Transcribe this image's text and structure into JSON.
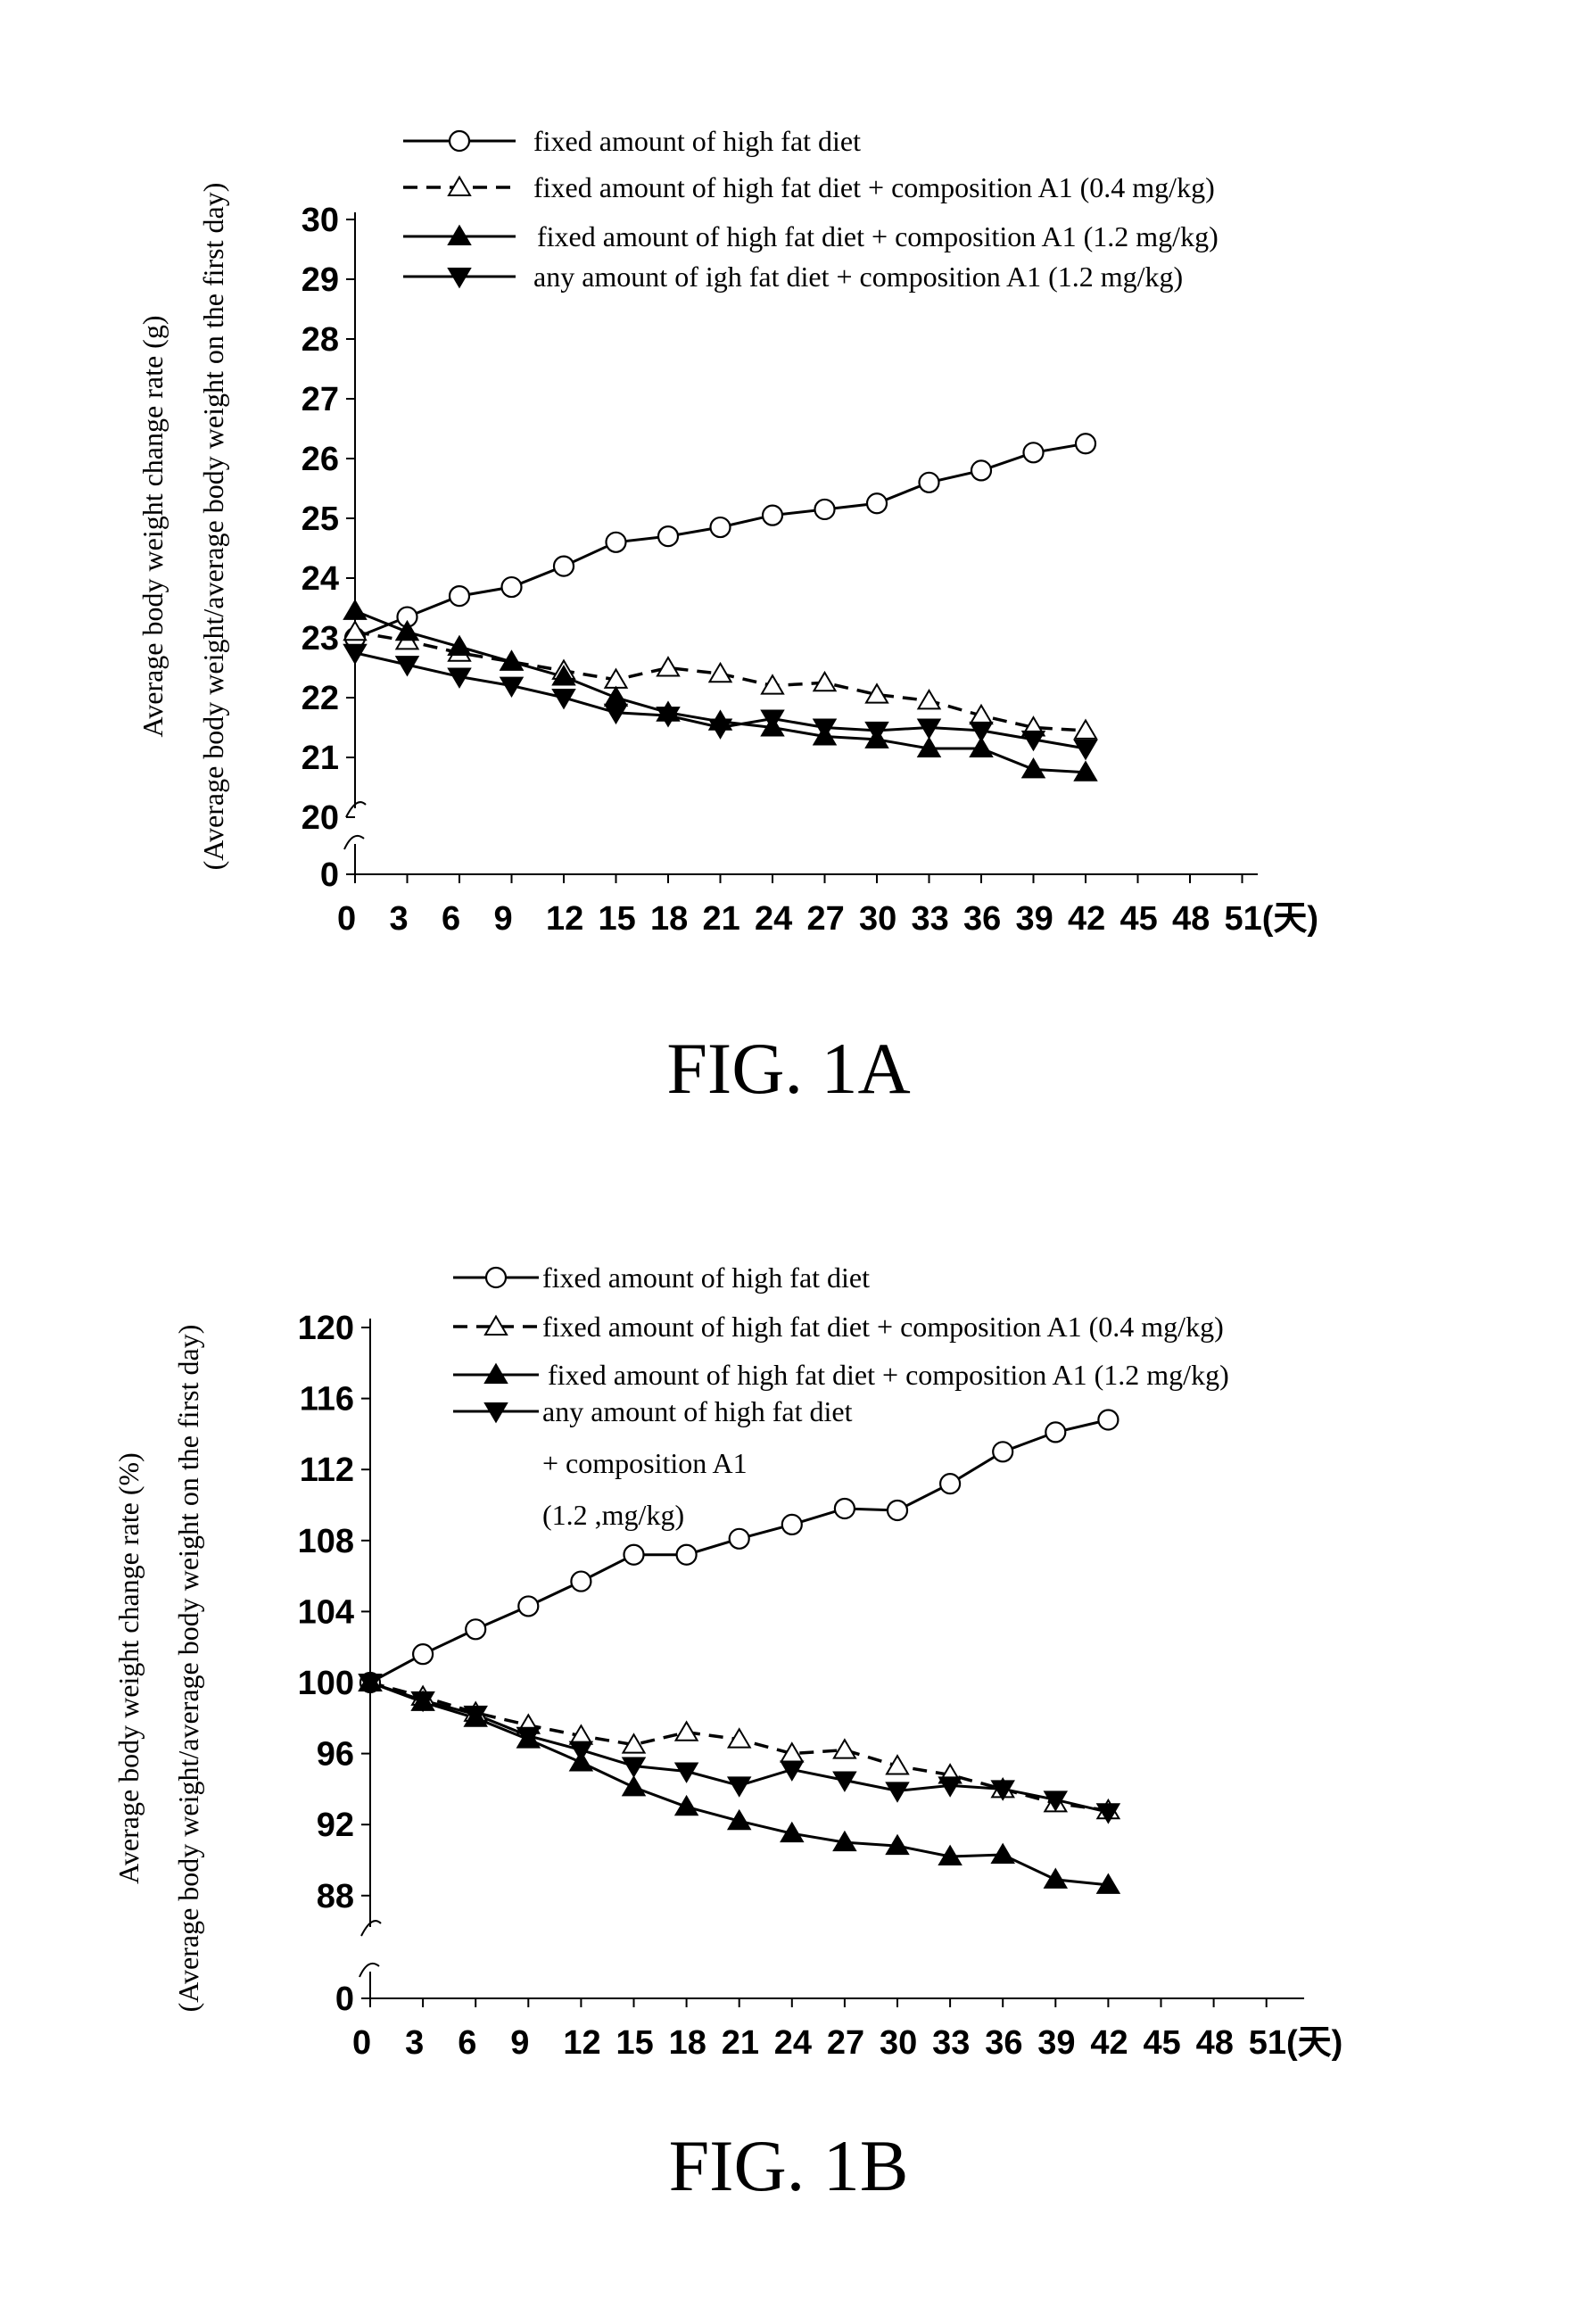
{
  "figures": [
    {
      "caption": "FIG. 1A"
    },
    {
      "caption": "FIG. 1B"
    }
  ],
  "chart_data": [
    {
      "type": "line",
      "ylabel": "Average body weight change rate (g)",
      "ylabel2": "(Average body weight/average body weight on the first day)",
      "x_ticks": [
        "0",
        "3",
        "6",
        "9",
        "12",
        "15",
        "18",
        "21",
        "24",
        "27",
        "30",
        "33",
        "36",
        "39",
        "42",
        "45",
        "48",
        "51(天)"
      ],
      "y_ticks": [
        "0",
        "20",
        "21",
        "22",
        "23",
        "24",
        "25",
        "26",
        "27",
        "28",
        "29",
        "30"
      ],
      "axis_break": true,
      "x": [
        0,
        3,
        6,
        9,
        12,
        15,
        18,
        21,
        24,
        27,
        30,
        33,
        36,
        39,
        42
      ],
      "series": [
        {
          "name": "fixed amount of high fat diet",
          "marker": "open-circle",
          "dash": "solid",
          "values": [
            23.0,
            23.35,
            23.7,
            23.85,
            24.2,
            24.6,
            24.7,
            24.85,
            25.05,
            25.15,
            25.25,
            25.6,
            25.8,
            26.1,
            26.25
          ]
        },
        {
          "name": "fixed amount of high fat diet + composition A1 (0.4 mg/kg)",
          "marker": "open-triangle",
          "dash": "dashed",
          "values": [
            23.1,
            22.95,
            22.75,
            22.6,
            22.45,
            22.3,
            22.5,
            22.4,
            22.2,
            22.25,
            22.05,
            21.95,
            21.7,
            21.5,
            21.45
          ]
        },
        {
          "name": "fixed amount of high fat diet + composition A1 (1.2 mg/kg)",
          "marker": "filled-triangle-up",
          "dash": "solid",
          "values": [
            23.45,
            23.1,
            22.85,
            22.6,
            22.35,
            22.0,
            21.75,
            21.6,
            21.5,
            21.35,
            21.3,
            21.15,
            21.15,
            20.8,
            20.75
          ]
        },
        {
          "name": "any amount of igh fat diet + composition A1 (1.2 mg/kg)",
          "marker": "filled-triangle-down",
          "dash": "solid",
          "values": [
            22.75,
            22.55,
            22.35,
            22.2,
            22.0,
            21.75,
            21.7,
            21.5,
            21.65,
            21.5,
            21.45,
            21.5,
            21.45,
            21.3,
            21.15
          ]
        }
      ]
    },
    {
      "type": "line",
      "ylabel": "Average body weight change rate (%)",
      "ylabel2": "(Average body weight/average body weight on the first day)",
      "x_ticks": [
        "0",
        "3",
        "6",
        "9",
        "12",
        "15",
        "18",
        "21",
        "24",
        "27",
        "30",
        "33",
        "36",
        "39",
        "42",
        "45",
        "48",
        "51(天)"
      ],
      "y_ticks": [
        "0",
        "88",
        "92",
        "96",
        "100",
        "104",
        "108",
        "112",
        "116",
        "120"
      ],
      "axis_break": true,
      "x": [
        0,
        3,
        6,
        9,
        12,
        15,
        18,
        21,
        24,
        27,
        30,
        33,
        36,
        39,
        42
      ],
      "series": [
        {
          "name": "fixed amount of high fat diet",
          "marker": "open-circle",
          "dash": "solid",
          "values": [
            100,
            101.6,
            103.0,
            104.3,
            105.7,
            107.2,
            107.2,
            108.1,
            108.9,
            109.8,
            109.7,
            111.2,
            113.0,
            114.1,
            114.8
          ]
        },
        {
          "name": "fixed amount of high fat diet + composition A1 (0.4 mg/kg)",
          "marker": "open-triangle",
          "dash": "dashed",
          "values": [
            100,
            99.2,
            98.3,
            97.6,
            97.0,
            96.5,
            97.2,
            96.8,
            96.0,
            96.2,
            95.3,
            94.8,
            94.0,
            93.2,
            92.8
          ]
        },
        {
          "name": "fixed amount of high fat diet + composition A1 (1.2 mg/kg)",
          "marker": "filled-triangle-up",
          "dash": "solid",
          "values": [
            100,
            98.9,
            98.0,
            96.8,
            95.5,
            94.1,
            93.0,
            92.2,
            91.5,
            91.0,
            90.8,
            90.2,
            90.3,
            88.9,
            88.6
          ]
        },
        {
          "name": "any amount of high fat diet",
          "name_lines": [
            "any amount of high fat diet",
            "+ composition A1",
            "(1.2 ,mg/kg)"
          ],
          "marker": "filled-triangle-down",
          "dash": "solid",
          "values": [
            100,
            99.0,
            98.2,
            97.0,
            96.2,
            95.3,
            95.0,
            94.2,
            95.1,
            94.5,
            93.9,
            94.2,
            94.0,
            93.4,
            92.7
          ]
        }
      ]
    }
  ]
}
